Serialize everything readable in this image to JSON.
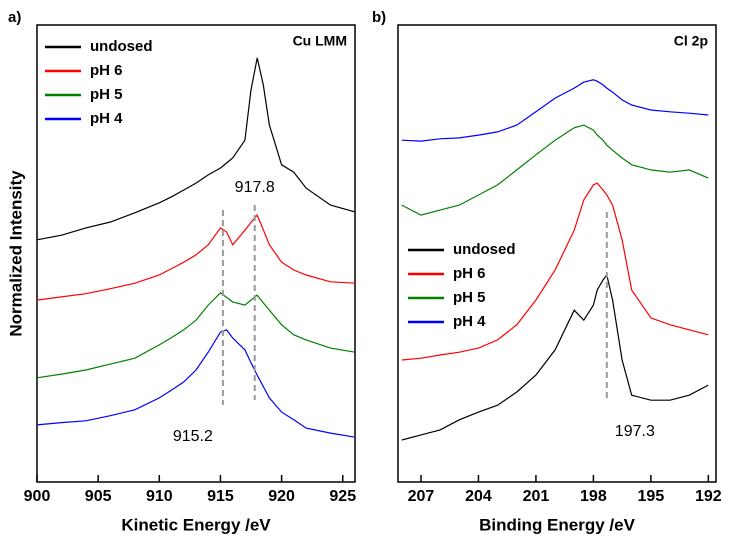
{
  "chart_data": [
    {
      "type": "line",
      "title": "a)",
      "annotation": "Cu LMM",
      "xlabel": "Kinetic Energy /eV",
      "ylabel": "Normalized Intensity",
      "x": [
        900,
        902,
        904,
        906,
        908,
        910,
        911,
        912,
        913,
        914,
        915,
        915.5,
        916,
        917,
        917.5,
        918,
        918.5,
        919,
        920,
        921,
        922,
        924,
        926
      ],
      "series": [
        {
          "name": "undosed",
          "color": "#000000",
          "values": [
            53.0,
            54.0,
            55.6,
            56.9,
            58.9,
            61.1,
            62.4,
            63.9,
            65.4,
            67.2,
            68.7,
            69.8,
            70.9,
            74.8,
            85.8,
            92.8,
            86.9,
            78.1,
            69.4,
            67.8,
            64.3,
            60.6,
            59.1
          ]
        },
        {
          "name": "pH 6",
          "color": "#ff0000",
          "values": [
            39.8,
            40.5,
            41.2,
            42.3,
            43.5,
            45.3,
            46.7,
            48.1,
            49.7,
            51.9,
            55.6,
            54.7,
            51.9,
            55.1,
            56.8,
            58.4,
            55.2,
            51.9,
            48.1,
            46.4,
            45.3,
            43.8,
            43.5
          ]
        },
        {
          "name": "pH 5",
          "color": "#008000",
          "values": [
            22.8,
            23.6,
            24.5,
            25.8,
            27.1,
            30.0,
            31.6,
            33.3,
            35.4,
            38.7,
            41.4,
            40.4,
            39.4,
            38.7,
            39.8,
            40.9,
            39.2,
            37.6,
            34.4,
            32.2,
            31.1,
            29.3,
            28.4
          ]
        },
        {
          "name": "pH 4",
          "color": "#0000ff",
          "values": [
            12.5,
            13.0,
            13.4,
            14.5,
            15.8,
            18.4,
            20.1,
            21.9,
            24.5,
            28.4,
            32.8,
            33.3,
            31.5,
            28.9,
            26.1,
            23.4,
            20.9,
            18.4,
            15.3,
            13.6,
            11.8,
            10.7,
            9.8
          ]
        }
      ],
      "vlines": [
        917.8,
        915.2
      ],
      "xlim": [
        900,
        926
      ],
      "xticks": [
        900,
        905,
        910,
        915,
        920,
        925
      ],
      "ylim": [
        0,
        100
      ],
      "legend": "upper left"
    },
    {
      "type": "line",
      "title": "b)",
      "annotation": "Cl 2p",
      "xlabel": "Binding Energy /eV",
      "x": [
        208,
        207,
        206,
        205,
        204,
        203,
        202,
        201,
        200,
        199,
        198.5,
        198,
        197.8,
        197.5,
        197.3,
        197,
        196.5,
        196,
        195,
        194,
        193,
        192
      ],
      "series": [
        {
          "name": "undosed",
          "color": "#000000",
          "values": [
            9.2,
            10.3,
            11.4,
            13.6,
            15.3,
            16.8,
            19.7,
            23.4,
            28.9,
            37.6,
            35.4,
            38.7,
            42.0,
            44.2,
            45.3,
            39.8,
            26.7,
            19.0,
            17.9,
            17.9,
            19.0,
            21.2
          ]
        },
        {
          "name": "pH 6",
          "color": "#ff0000",
          "values": [
            26.7,
            27.1,
            27.8,
            28.4,
            29.3,
            31.1,
            34.4,
            39.8,
            46.4,
            55.1,
            61.7,
            65.0,
            65.4,
            63.9,
            62.8,
            60.6,
            53.0,
            42.0,
            35.9,
            34.4,
            33.3,
            32.2
          ]
        },
        {
          "name": "pH 5",
          "color": "#008000",
          "values": [
            60.6,
            58.4,
            59.5,
            60.6,
            62.8,
            65.0,
            68.3,
            71.6,
            74.8,
            77.5,
            78.1,
            77.0,
            75.9,
            74.8,
            73.7,
            72.6,
            70.9,
            69.4,
            68.3,
            67.8,
            68.3,
            66.5
          ]
        },
        {
          "name": "pH 4",
          "color": "#0000ff",
          "values": [
            74.8,
            74.6,
            75.1,
            75.3,
            75.9,
            76.6,
            78.1,
            81.0,
            84.0,
            86.2,
            87.5,
            88.0,
            87.7,
            86.9,
            86.2,
            85.3,
            83.6,
            82.5,
            81.4,
            81.0,
            80.7,
            80.3
          ]
        }
      ],
      "vlines": [
        197.3
      ],
      "xlim": [
        208.2,
        191.6
      ],
      "xticks": [
        207,
        204,
        201,
        198,
        195,
        192
      ],
      "ylim": [
        0,
        100
      ],
      "legend": "lower left"
    }
  ]
}
